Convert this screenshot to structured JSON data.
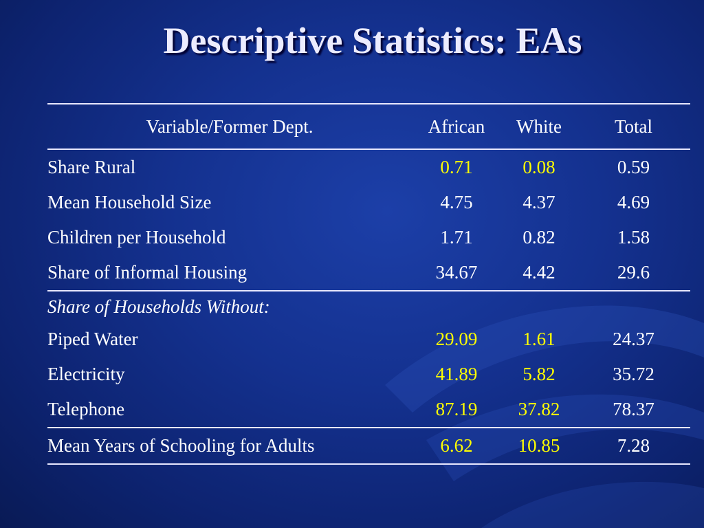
{
  "title": "Descriptive Statistics: EAs",
  "table": {
    "headers": {
      "variable": "Variable/Former Dept.",
      "african": "African",
      "white": "White",
      "total": "Total"
    },
    "rows": [
      {
        "label": "Share Rural",
        "african": "0.71",
        "white": "0.08",
        "total": "0.59"
      },
      {
        "label": "Mean Household Size",
        "african": "4.75",
        "white": "4.37",
        "total": "4.69"
      },
      {
        "label": "Children per Household",
        "african": "1.71",
        "white": "0.82",
        "total": "1.58"
      },
      {
        "label": "Share of Informal Housing",
        "african": "34.67",
        "white": "4.42",
        "total": "29.6"
      },
      {
        "label": "Piped Water",
        "african": "29.09",
        "white": "1.61",
        "total": "24.37"
      },
      {
        "label": "Electricity",
        "african": "41.89",
        "white": "5.82",
        "total": "35.72"
      },
      {
        "label": "Telephone",
        "african": "87.19",
        "white": "37.82",
        "total": "78.37"
      },
      {
        "label": "Mean Years of Schooling for Adults",
        "african": "6.62",
        "white": "10.85",
        "total": "7.28"
      }
    ],
    "section_label": "Share of Households Without:"
  },
  "colors": {
    "background": "#14318f",
    "highlight": "#ffff00",
    "text": "#ffffff"
  }
}
